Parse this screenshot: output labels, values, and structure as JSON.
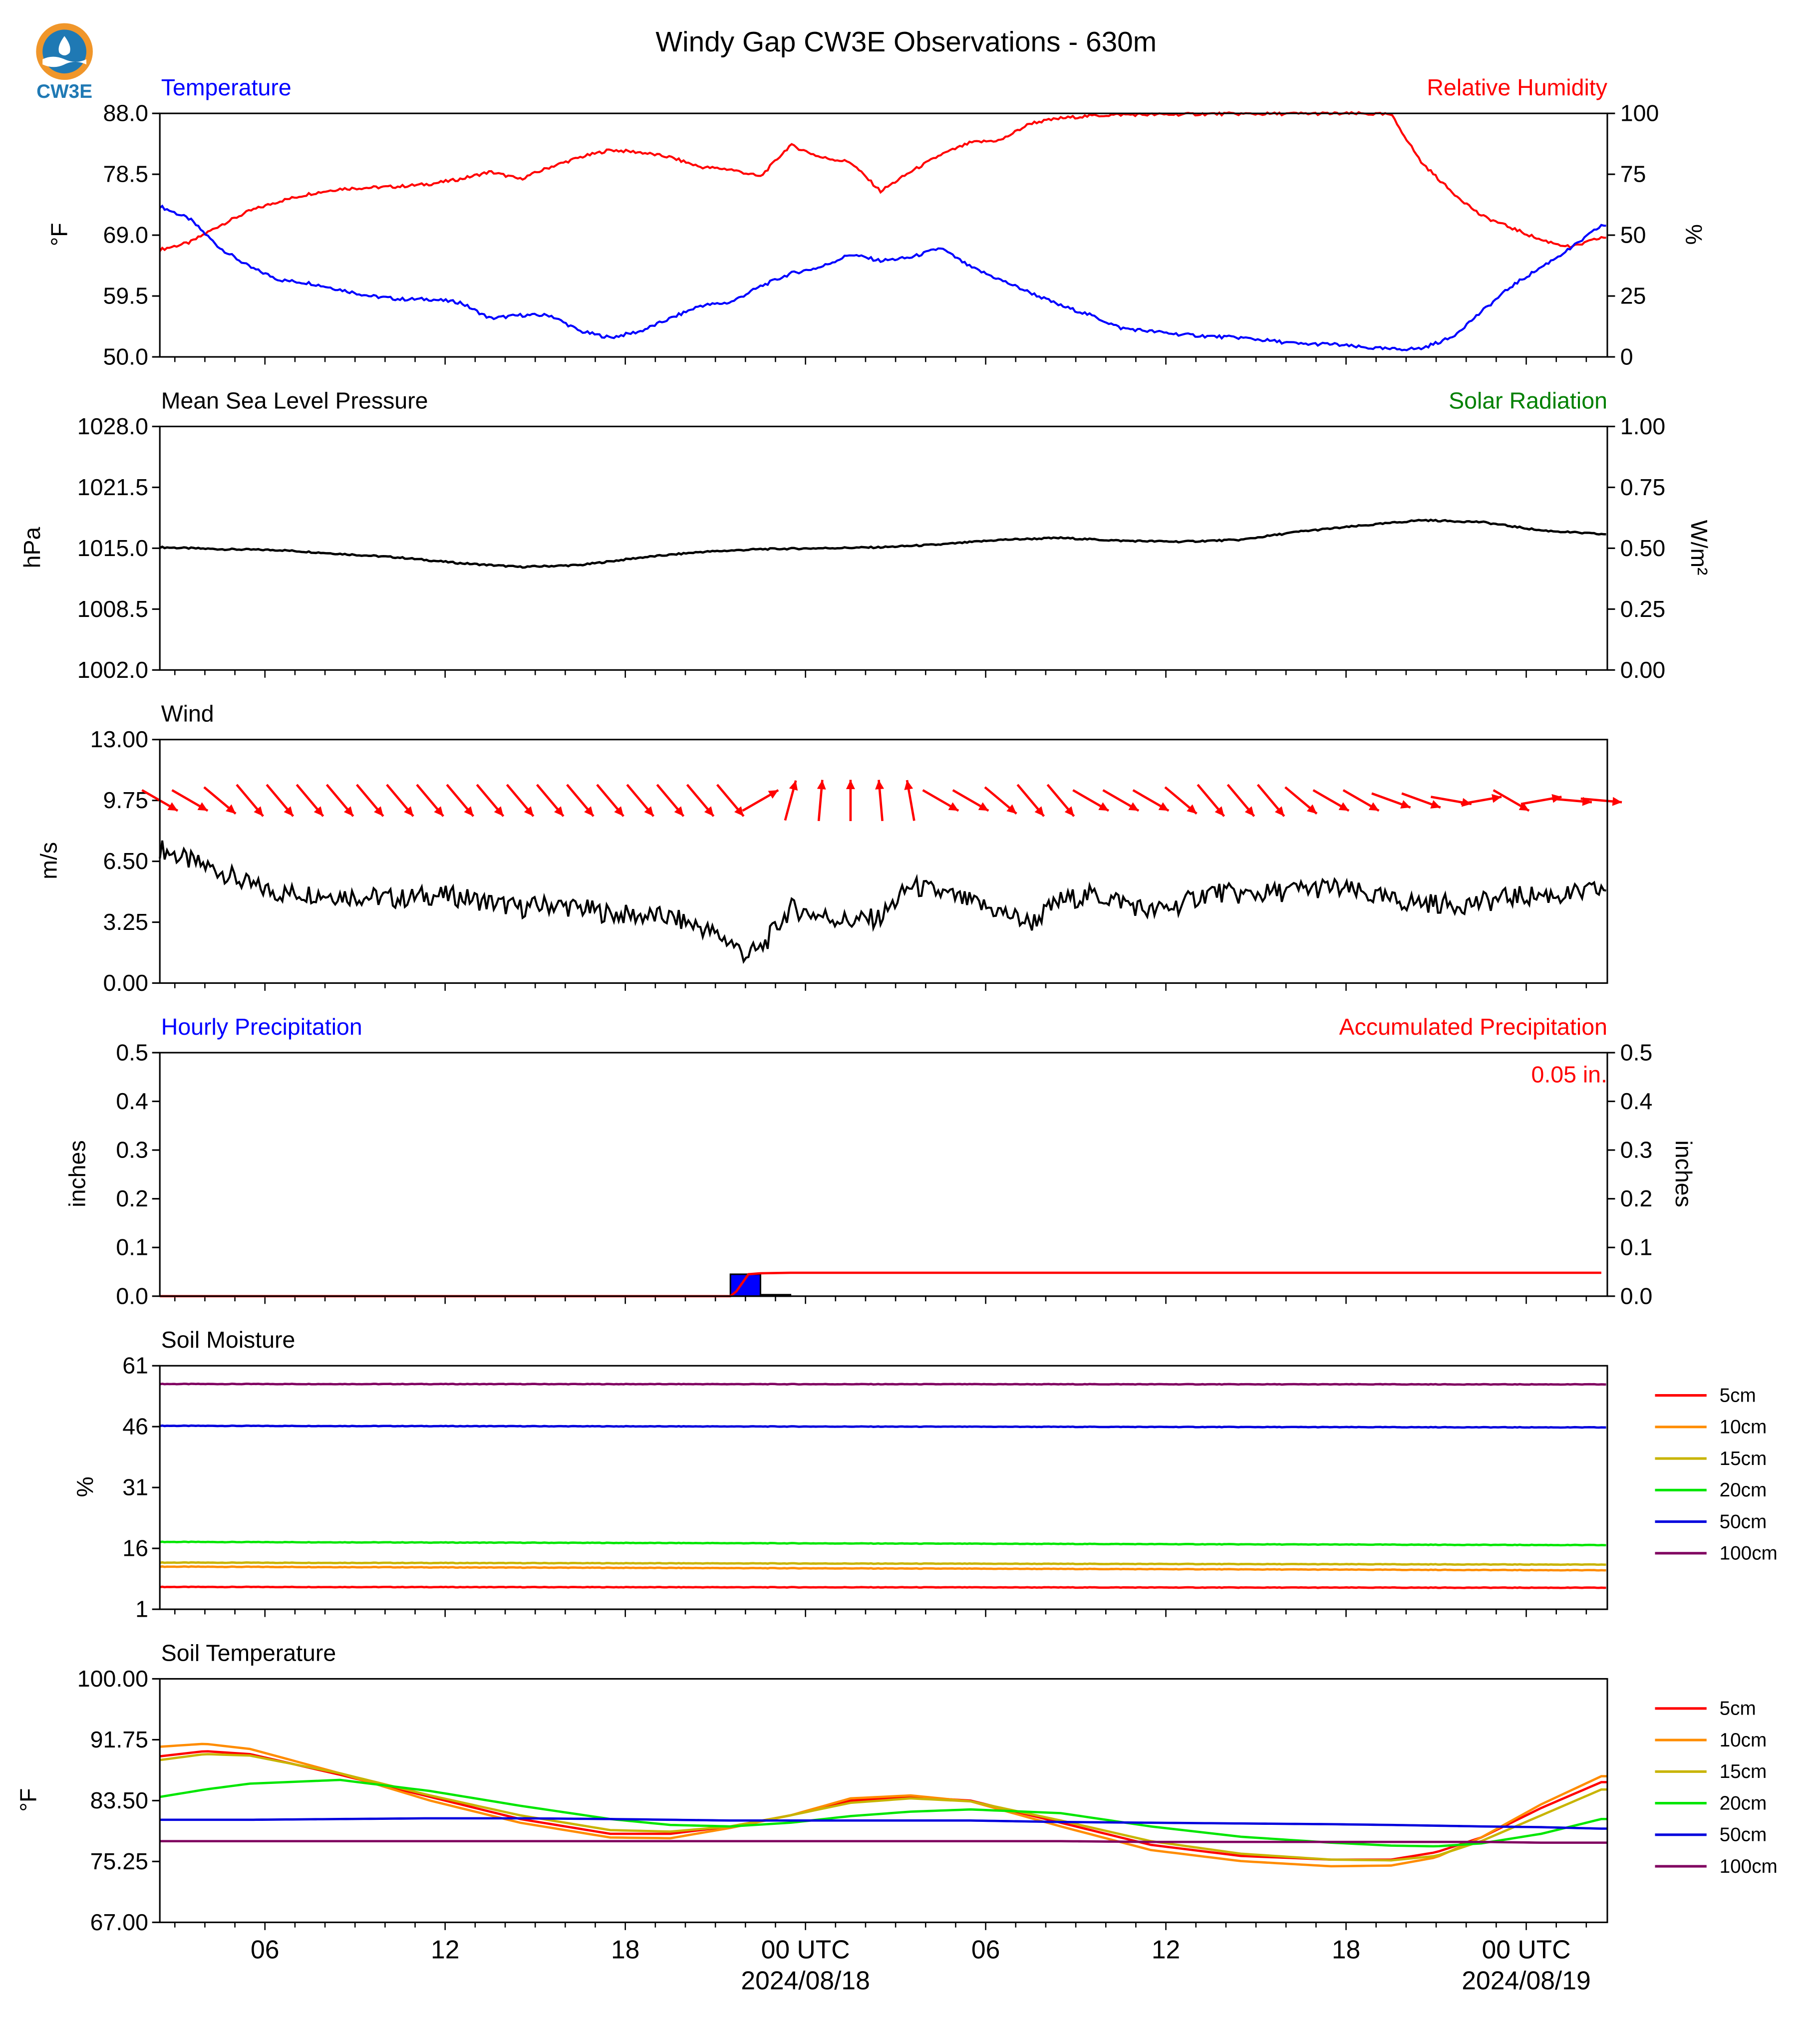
{
  "figure": {
    "title": "Windy Gap CW3E Observations - 630m",
    "logo_text": "CW3E"
  },
  "x_axis": {
    "tick_labels": [
      "06",
      "12",
      "18",
      "00 UTC",
      "06",
      "12",
      "18",
      "00 UTC"
    ],
    "date_labels": [
      "2024/08/18",
      "2024/08/19"
    ]
  },
  "chart_data": [
    {
      "type": "line",
      "panel": "temperature_rh",
      "left_title": "Temperature",
      "right_title": "Relative Humidity",
      "ylabel": "°F",
      "ylabel_right": "%",
      "ylim": [
        50.0,
        88.0
      ],
      "ylim_right": [
        0,
        100
      ],
      "yticks": [
        "50.0",
        "59.5",
        "69.0",
        "78.5",
        "88.0"
      ],
      "yticks_right": [
        "0",
        "25",
        "50",
        "75",
        "100"
      ],
      "x_hours": [
        0,
        1,
        2,
        3,
        4,
        5,
        6,
        7,
        8,
        9,
        10,
        11,
        12,
        13,
        14,
        15,
        16,
        17,
        18,
        19,
        20,
        21,
        22,
        23,
        24,
        25,
        26,
        27,
        28,
        29,
        30,
        31,
        32,
        33,
        34,
        35,
        36,
        37,
        38,
        39,
        40,
        41,
        42,
        43,
        44,
        45,
        46,
        47,
        48
      ],
      "series": [
        {
          "name": "Temperature",
          "axis": "left",
          "color": "#0000ff",
          "values": [
            73.5,
            71.5,
            67,
            64,
            62,
            61.5,
            60.5,
            59.5,
            59,
            59,
            58.5,
            56,
            56.5,
            56.5,
            54,
            53,
            54,
            56,
            58,
            58.5,
            61,
            63,
            64,
            66,
            65,
            65.5,
            67,
            64,
            62,
            60,
            58,
            56.5,
            54.5,
            54,
            53.5,
            53.2,
            53,
            52.5,
            52,
            52,
            51.5,
            51.2,
            51.3,
            53,
            57,
            61,
            64,
            67,
            70.5
          ]
        },
        {
          "name": "Relative Humidity",
          "axis": "right",
          "color": "#ff0000",
          "values": [
            44,
            47,
            54,
            60,
            64,
            67,
            69,
            69.5,
            70,
            71,
            73,
            76,
            73,
            78,
            82,
            85,
            84,
            82,
            78,
            77,
            74,
            87,
            82,
            80,
            68,
            76,
            83,
            88,
            89,
            96,
            98,
            99,
            99.5,
            99.5,
            99.6,
            99.8,
            99.8,
            99.8,
            99.9,
            99.9,
            99.9,
            99.5,
            80,
            68,
            58,
            53,
            48,
            45,
            49
          ]
        }
      ]
    },
    {
      "type": "line",
      "panel": "pressure_solar",
      "left_title": "Mean Sea Level Pressure",
      "right_title": "Solar Radiation",
      "ylabel": "hPa",
      "ylabel_right": "W/m²",
      "ylim": [
        1002.0,
        1028.0
      ],
      "ylim_right": [
        0.0,
        1.0
      ],
      "yticks": [
        "1002.0",
        "1008.5",
        "1015.0",
        "1021.5",
        "1028.0"
      ],
      "yticks_right": [
        "0.00",
        "0.25",
        "0.50",
        "0.75",
        "1.00"
      ],
      "x_hours": [
        0,
        2,
        4,
        6,
        8,
        10,
        12,
        14,
        16,
        18,
        20,
        22,
        24,
        26,
        28,
        30,
        32,
        34,
        36,
        38,
        40,
        42,
        44,
        46,
        48
      ],
      "series": [
        {
          "name": "Mean Sea Level Pressure",
          "axis": "left",
          "color": "#000000",
          "values": [
            1015.1,
            1014.9,
            1014.8,
            1014.4,
            1014.0,
            1013.4,
            1013.0,
            1013.2,
            1014.0,
            1014.6,
            1014.9,
            1015.0,
            1015.1,
            1015.4,
            1015.9,
            1016.1,
            1015.8,
            1015.7,
            1015.9,
            1016.8,
            1017.4,
            1018.0,
            1017.8,
            1016.9,
            1016.5
          ]
        }
      ]
    },
    {
      "type": "line",
      "panel": "wind",
      "left_title": "Wind",
      "ylabel": "m/s",
      "ylim": [
        0.0,
        13.0
      ],
      "yticks": [
        "0.00",
        "3.25",
        "6.50",
        "9.75",
        "13.00"
      ],
      "x_hours": [
        0,
        1,
        2,
        3,
        4,
        5,
        6,
        7,
        8,
        9,
        10,
        11,
        12,
        13,
        14,
        15,
        16,
        17,
        18,
        19,
        19.5,
        20,
        21,
        22,
        23,
        24,
        25,
        26,
        27,
        28,
        29,
        30,
        31,
        32,
        33,
        34,
        35,
        36,
        37,
        38,
        39,
        40,
        41,
        42,
        43,
        44,
        45,
        46,
        47,
        48
      ],
      "series": [
        {
          "name": "Wind Speed",
          "color": "#000000",
          "values": [
            7.2,
            6.5,
            6.0,
            5.2,
            4.8,
            4.8,
            4.7,
            4.6,
            4.5,
            4.7,
            4.6,
            4.3,
            4.0,
            4.2,
            4.0,
            3.7,
            3.6,
            3.5,
            3.0,
            2.2,
            1.5,
            1.8,
            4.0,
            3.6,
            3.3,
            3.5,
            5.2,
            4.8,
            4.3,
            3.8,
            3.2,
            4.4,
            4.7,
            4.4,
            3.8,
            4.2,
            4.9,
            4.7,
            4.8,
            5.0,
            5.1,
            4.8,
            4.4,
            4.3,
            4.2,
            4.3,
            4.6,
            4.7,
            4.7,
            5.0
          ]
        },
        {
          "name": "Wind Direction Barbs",
          "color": "#ff0000",
          "direction_deg_x_hours": [
            0,
            1,
            2,
            3,
            4,
            5,
            6,
            7,
            8,
            9,
            10,
            11,
            12,
            13,
            14,
            15,
            16,
            17,
            18,
            19,
            20,
            21,
            22,
            23,
            24,
            25,
            26,
            27,
            28,
            29,
            30,
            31,
            32,
            33,
            34,
            35,
            36,
            37,
            38,
            39,
            40,
            41,
            42,
            43,
            44,
            45,
            46,
            47,
            48
          ],
          "direction_deg": [
            300,
            300,
            310,
            320,
            320,
            320,
            320,
            320,
            320,
            320,
            320,
            320,
            320,
            320,
            320,
            320,
            320,
            320,
            320,
            320,
            240,
            195,
            185,
            180,
            175,
            170,
            300,
            300,
            310,
            320,
            320,
            300,
            300,
            300,
            310,
            320,
            320,
            320,
            310,
            300,
            300,
            290,
            290,
            280,
            260,
            300,
            260,
            275,
            275
          ]
        }
      ]
    },
    {
      "type": "bar",
      "panel": "precipitation",
      "left_title": "Hourly Precipitation",
      "right_title": "Accumulated Precipitation",
      "accumulated_label": "0.05 in.",
      "ylabel": "inches",
      "ylabel_right": "inches",
      "ylim": [
        0.0,
        0.5
      ],
      "ylim_right": [
        0.0,
        0.5
      ],
      "yticks": [
        "0.0",
        "0.1",
        "0.2",
        "0.3",
        "0.4",
        "0.5"
      ],
      "yticks_right": [
        "0.0",
        "0.1",
        "0.2",
        "0.3",
        "0.4",
        "0.5"
      ],
      "hourly_bars": [
        {
          "start_hour": 19,
          "end_hour": 20,
          "value": 0.045,
          "color": "#0000ff"
        },
        {
          "start_hour": 20,
          "end_hour": 21,
          "value": 0.003,
          "color": "#0000ff"
        }
      ],
      "accumulated": {
        "name": "Accumulated Precipitation",
        "color": "#ff0000",
        "x_hours": [
          0,
          19,
          19.2,
          19.6,
          20,
          21,
          48
        ],
        "values": [
          0,
          0,
          0.01,
          0.045,
          0.047,
          0.048,
          0.048
        ]
      }
    },
    {
      "type": "line",
      "panel": "soil_moisture",
      "left_title": "Soil Moisture",
      "ylabel": "%",
      "ylim": [
        1,
        61
      ],
      "yticks": [
        "1",
        "16",
        "31",
        "46",
        "61"
      ],
      "x_hours": [
        0,
        48
      ],
      "series": [
        {
          "name": "5cm",
          "color": "#ff0000",
          "values": [
            6.5,
            6.3
          ]
        },
        {
          "name": "10cm",
          "color": "#ff8c00",
          "values": [
            11.5,
            10.6
          ]
        },
        {
          "name": "15cm",
          "color": "#c8b400",
          "values": [
            12.5,
            12.0
          ]
        },
        {
          "name": "20cm",
          "color": "#00e600",
          "values": [
            17.6,
            16.8
          ]
        },
        {
          "name": "50cm",
          "color": "#0000dd",
          "values": [
            46.2,
            45.8
          ]
        },
        {
          "name": "100cm",
          "color": "#800060",
          "values": [
            56.5,
            56.4
          ]
        }
      ]
    },
    {
      "type": "line",
      "panel": "soil_temperature",
      "left_title": "Soil Temperature",
      "ylabel": "°F",
      "ylim": [
        67.0,
        100.0
      ],
      "yticks": [
        "67.00",
        "75.25",
        "83.50",
        "91.75",
        "100.00"
      ],
      "x_hours": [
        0,
        1.5,
        3,
        6,
        9,
        12,
        15,
        17,
        19,
        21,
        23,
        25,
        27,
        30,
        33,
        36,
        39,
        41,
        42.5,
        44,
        46,
        48
      ],
      "series": [
        {
          "name": "5cm",
          "color": "#ff0000",
          "values": [
            89.5,
            90.2,
            89.8,
            87.0,
            84.0,
            81.0,
            79.0,
            79.0,
            80.0,
            81.5,
            83.5,
            84.0,
            83.5,
            80.5,
            77.5,
            76.0,
            75.5,
            75.5,
            76.5,
            78.5,
            82.5,
            86.0
          ]
        },
        {
          "name": "10cm",
          "color": "#ff8c00",
          "values": [
            90.8,
            91.2,
            90.5,
            87.2,
            83.5,
            80.5,
            78.5,
            78.4,
            79.8,
            81.5,
            83.8,
            84.2,
            83.4,
            80.0,
            76.8,
            75.3,
            74.6,
            74.7,
            75.8,
            78.5,
            83.0,
            86.8
          ]
        },
        {
          "name": "15cm",
          "color": "#c8b400",
          "values": [
            89.0,
            89.8,
            89.6,
            87.2,
            84.2,
            81.5,
            79.5,
            79.3,
            80.0,
            81.5,
            83.2,
            83.8,
            83.4,
            80.8,
            78.0,
            76.3,
            75.5,
            75.4,
            76.0,
            78.0,
            81.5,
            85.0
          ]
        },
        {
          "name": "20cm",
          "color": "#00e600",
          "values": [
            84.0,
            85.0,
            85.8,
            86.3,
            84.8,
            82.8,
            81.0,
            80.2,
            80.0,
            80.5,
            81.4,
            82.0,
            82.3,
            81.8,
            80.0,
            78.6,
            77.8,
            77.4,
            77.3,
            77.7,
            79.0,
            81.0
          ]
        },
        {
          "name": "50cm",
          "color": "#0000dd",
          "values": [
            80.9,
            80.9,
            80.9,
            81.0,
            81.1,
            81.1,
            81.0,
            80.9,
            80.8,
            80.8,
            80.8,
            80.8,
            80.8,
            80.6,
            80.5,
            80.4,
            80.3,
            80.2,
            80.1,
            80.0,
            79.9,
            79.7
          ]
        },
        {
          "name": "100cm",
          "color": "#800060",
          "values": [
            78.0,
            78.0,
            78.0,
            78.0,
            78.0,
            78.0,
            78.0,
            78.0,
            78.0,
            78.0,
            78.0,
            78.0,
            78.0,
            78.0,
            77.9,
            77.9,
            77.9,
            77.9,
            77.9,
            77.9,
            77.8,
            77.8
          ]
        }
      ]
    }
  ]
}
